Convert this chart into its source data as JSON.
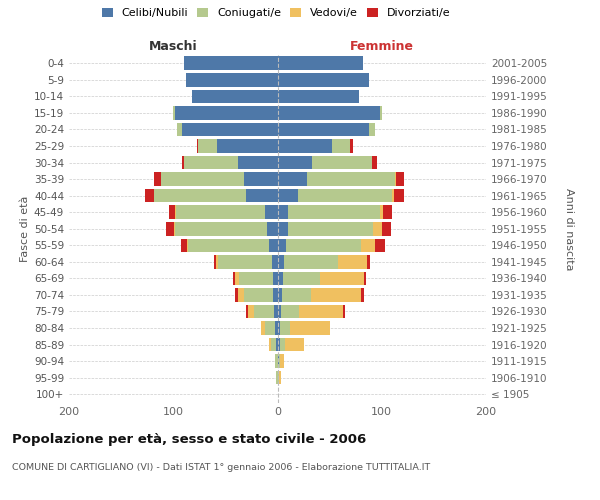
{
  "age_groups": [
    "100+",
    "95-99",
    "90-94",
    "85-89",
    "80-84",
    "75-79",
    "70-74",
    "65-69",
    "60-64",
    "55-59",
    "50-54",
    "45-49",
    "40-44",
    "35-39",
    "30-34",
    "25-29",
    "20-24",
    "15-19",
    "10-14",
    "5-9",
    "0-4"
  ],
  "birth_years": [
    "≤ 1905",
    "1906-1910",
    "1911-1915",
    "1916-1920",
    "1921-1925",
    "1926-1930",
    "1931-1935",
    "1936-1940",
    "1941-1945",
    "1946-1950",
    "1951-1955",
    "1956-1960",
    "1961-1965",
    "1966-1970",
    "1971-1975",
    "1976-1980",
    "1981-1985",
    "1986-1990",
    "1991-1995",
    "1996-2000",
    "2001-2005"
  ],
  "male_celibe": [
    0,
    0,
    0,
    1,
    2,
    3,
    4,
    4,
    5,
    8,
    10,
    12,
    30,
    32,
    38,
    58,
    92,
    98,
    82,
    88,
    90
  ],
  "male_coniugato": [
    0,
    1,
    2,
    5,
    10,
    20,
    28,
    33,
    52,
    78,
    88,
    85,
    88,
    80,
    52,
    18,
    4,
    2,
    0,
    0,
    0
  ],
  "male_vedovo": [
    0,
    0,
    0,
    2,
    4,
    5,
    6,
    4,
    2,
    1,
    1,
    1,
    0,
    0,
    0,
    0,
    0,
    0,
    0,
    0,
    0
  ],
  "male_divorziato": [
    0,
    0,
    0,
    0,
    0,
    2,
    3,
    2,
    2,
    6,
    8,
    6,
    9,
    6,
    2,
    1,
    0,
    0,
    0,
    0,
    0
  ],
  "female_nubile": [
    0,
    0,
    1,
    2,
    2,
    3,
    4,
    5,
    6,
    8,
    10,
    10,
    20,
    28,
    33,
    52,
    88,
    98,
    78,
    88,
    82
  ],
  "female_coniugata": [
    0,
    1,
    1,
    5,
    10,
    18,
    28,
    36,
    52,
    72,
    82,
    88,
    90,
    85,
    58,
    18,
    6,
    2,
    0,
    0,
    0
  ],
  "female_vedova": [
    0,
    2,
    4,
    18,
    38,
    42,
    48,
    42,
    28,
    14,
    8,
    3,
    2,
    1,
    0,
    0,
    0,
    0,
    0,
    0,
    0
  ],
  "female_divorziata": [
    0,
    0,
    0,
    0,
    0,
    2,
    3,
    2,
    3,
    9,
    9,
    9,
    9,
    7,
    4,
    2,
    0,
    0,
    0,
    0,
    0
  ],
  "colors": {
    "celibe": "#4e78a8",
    "coniugato": "#b5c98e",
    "vedovo": "#f0c060",
    "divorziato": "#cc2222"
  },
  "xlim": 200,
  "title": "Popolazione per età, sesso e stato civile - 2006",
  "subtitle": "COMUNE DI CARTIGLIANO (VI) - Dati ISTAT 1° gennaio 2006 - Elaborazione TUTTITALIA.IT",
  "ylabel_left": "Fasce di età",
  "ylabel_right": "Anni di nascita",
  "label_maschi": "Maschi",
  "label_femmine": "Femmine",
  "legend_labels": [
    "Celibi/Nubili",
    "Coniugati/e",
    "Vedovi/e",
    "Divorziati/e"
  ]
}
